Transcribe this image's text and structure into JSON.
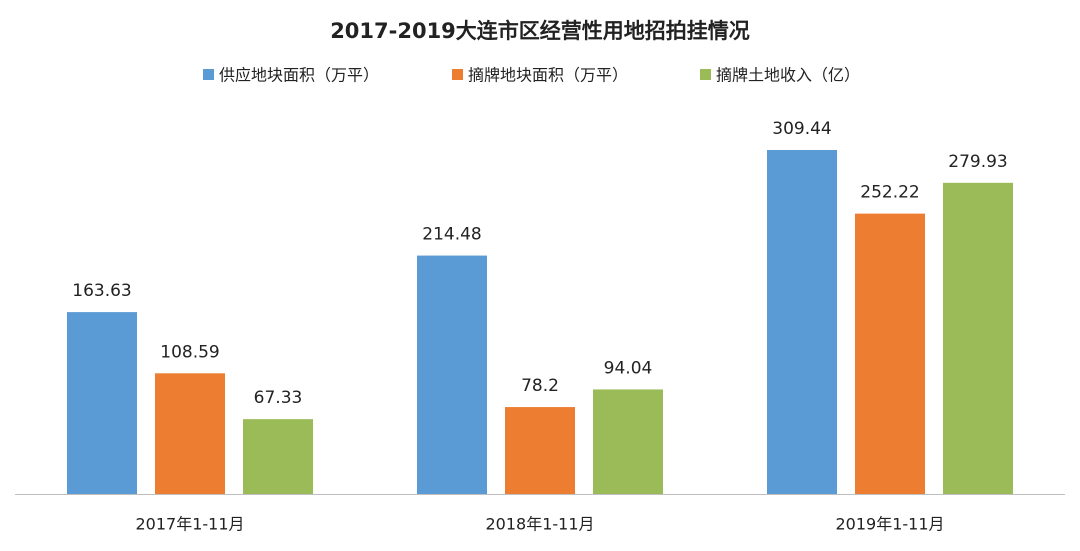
{
  "chart_data": {
    "type": "bar",
    "title": "2017-2019大连市区经营性用地招拍挂情况",
    "categories": [
      "2017年1-11月",
      "2018年1-11月",
      "2019年1-11月"
    ],
    "series": [
      {
        "name": "供应地块面积（万平）",
        "color": "#5b9bd5",
        "values": [
          163.63,
          214.48,
          309.44
        ]
      },
      {
        "name": "摘牌地块面积（万平）",
        "color": "#ed7d31",
        "values": [
          108.59,
          78.2,
          252.22
        ]
      },
      {
        "name": "摘牌土地收入（亿）",
        "color": "#9bbb59",
        "values": [
          67.33,
          94.04,
          279.93
        ]
      }
    ],
    "legend": "top"
  }
}
